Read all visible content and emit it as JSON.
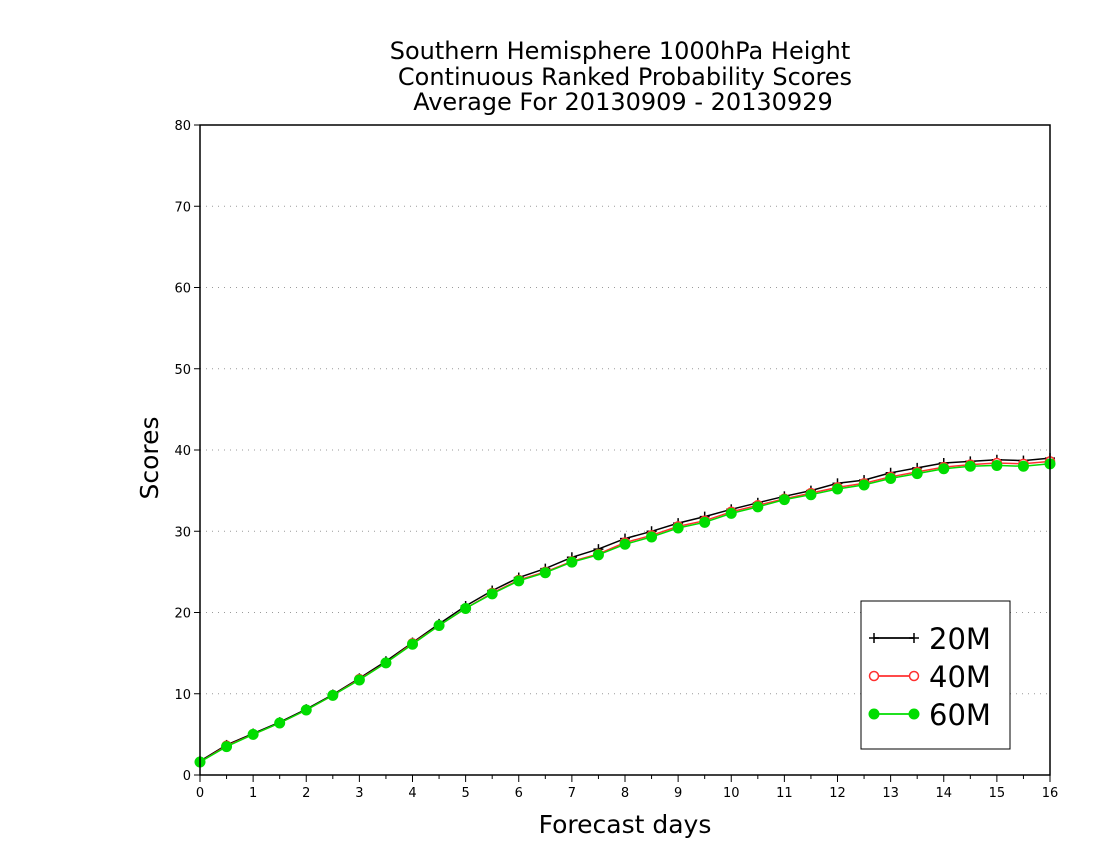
{
  "chart_data": {
    "type": "line",
    "title_lines": [
      "Southern Hemisphere 1000hPa Height",
      "Continuous Ranked Probability Scores",
      "Average For 20130909 - 20130929"
    ],
    "xlabel": "Forecast days",
    "ylabel": "Scores",
    "xlim": [
      0,
      16
    ],
    "ylim": [
      0,
      80
    ],
    "xticks": [
      0,
      1,
      2,
      3,
      4,
      5,
      6,
      7,
      8,
      9,
      10,
      11,
      12,
      13,
      14,
      15,
      16
    ],
    "yticks": [
      0,
      10,
      20,
      30,
      40,
      50,
      60,
      70,
      80
    ],
    "grid": true,
    "legend_position": "bottom-right",
    "x": [
      0,
      0.5,
      1,
      1.5,
      2,
      2.5,
      3,
      3.5,
      4,
      4.5,
      5,
      5.5,
      6,
      6.5,
      7,
      7.5,
      8,
      8.5,
      9,
      9.5,
      10,
      10.5,
      11,
      11.5,
      12,
      12.5,
      13,
      13.5,
      14,
      14.5,
      15,
      15.5,
      16
    ],
    "series": [
      {
        "name": "20M",
        "color": "#000000",
        "marker": "plus",
        "values": [
          1.7,
          3.7,
          5.1,
          6.5,
          8.1,
          9.9,
          11.9,
          14.0,
          16.3,
          18.6,
          20.8,
          22.7,
          24.3,
          25.4,
          26.8,
          27.8,
          29.1,
          30.0,
          31.0,
          31.8,
          32.7,
          33.5,
          34.3,
          35.0,
          35.9,
          36.3,
          37.2,
          37.8,
          38.4,
          38.6,
          38.8,
          38.7,
          39.0
        ]
      },
      {
        "name": "40M",
        "color": "#ff3030",
        "marker": "open-circle",
        "values": [
          1.6,
          3.6,
          5.0,
          6.4,
          8.0,
          9.8,
          11.8,
          13.8,
          16.2,
          18.4,
          20.5,
          22.4,
          24.0,
          25.0,
          26.3,
          27.2,
          28.6,
          29.5,
          30.6,
          31.3,
          32.4,
          33.2,
          34.0,
          34.7,
          35.4,
          35.9,
          36.7,
          37.3,
          37.9,
          38.2,
          38.4,
          38.3,
          38.6
        ]
      },
      {
        "name": "60M",
        "color": "#00dd00",
        "marker": "filled-circle",
        "values": [
          1.6,
          3.5,
          5.0,
          6.4,
          8.0,
          9.8,
          11.7,
          13.8,
          16.1,
          18.4,
          20.5,
          22.3,
          23.9,
          24.9,
          26.2,
          27.1,
          28.4,
          29.3,
          30.4,
          31.1,
          32.2,
          33.0,
          33.9,
          34.5,
          35.2,
          35.7,
          36.5,
          37.1,
          37.7,
          38.0,
          38.1,
          38.0,
          38.3
        ]
      }
    ]
  }
}
